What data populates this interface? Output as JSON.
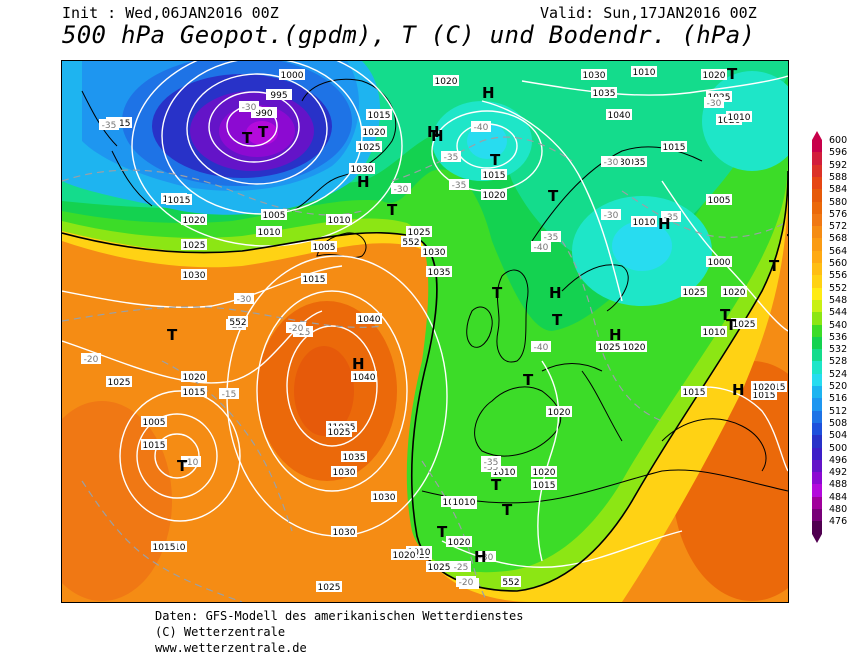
{
  "header": {
    "init": "Init : Wed,06JAN2016 00Z",
    "valid": "Valid: Sun,17JAN2016 00Z",
    "title": "500 hPa Geopot.(gpdm), T (C) und Bodendr. (hPa)"
  },
  "footer": {
    "line1": "Daten: GFS-Modell des amerikanischen Wetterdienstes",
    "line2": "(C) Wetterzentrale",
    "line3": "www.wetterzentrale.de"
  },
  "legend": {
    "levels": [
      "600",
      "596",
      "592",
      "588",
      "584",
      "580",
      "576",
      "572",
      "568",
      "564",
      "560",
      "556",
      "552",
      "548",
      "544",
      "540",
      "536",
      "532",
      "528",
      "524",
      "520",
      "516",
      "512",
      "508",
      "504",
      "500",
      "496",
      "492",
      "488",
      "484",
      "480",
      "476"
    ],
    "colors": [
      "#c8004a",
      "#d21e3c",
      "#dc3228",
      "#e64614",
      "#e65a0a",
      "#eb690a",
      "#f07814",
      "#f58c14",
      "#fa9b14",
      "#ffaa14",
      "#ffbe14",
      "#ffd214",
      "#ffeb14",
      "#c8f014",
      "#8ce614",
      "#3cdc28",
      "#14d250",
      "#14dc8c",
      "#1ee6c8",
      "#28dcf0",
      "#1eb4f0",
      "#1e96f0",
      "#1e73e6",
      "#1e50dc",
      "#2832c8",
      "#3c1ec8",
      "#6414c8",
      "#8c0ad2",
      "#b40adc",
      "#a0009b",
      "#780078",
      "#500050"
    ]
  },
  "map": {
    "pressure_labels": [
      {
        "text": "1000"
      },
      {
        "text": "995"
      },
      {
        "text": "990"
      },
      {
        "text": "1020"
      },
      {
        "text": "1015"
      },
      {
        "text": "1015"
      },
      {
        "text": "1020"
      },
      {
        "text": "1025"
      },
      {
        "text": "1030"
      },
      {
        "text": "1015"
      },
      {
        "text": "1005"
      },
      {
        "text": "1010"
      },
      {
        "text": "1015"
      },
      {
        "text": "1020"
      },
      {
        "text": "1025"
      },
      {
        "text": "1030"
      },
      {
        "text": "1010"
      },
      {
        "text": "1005"
      },
      {
        "text": "1015"
      },
      {
        "text": "1025"
      },
      {
        "text": "1030"
      },
      {
        "text": "1035"
      },
      {
        "text": "1040"
      },
      {
        "text": "1035"
      },
      {
        "text": "1030"
      },
      {
        "text": "1040"
      },
      {
        "text": "1035"
      },
      {
        "text": "1030"
      },
      {
        "text": "1025"
      },
      {
        "text": "1020"
      },
      {
        "text": "1015"
      },
      {
        "text": "1010"
      },
      {
        "text": "1005"
      },
      {
        "text": "1000"
      },
      {
        "text": "1010"
      },
      {
        "text": "1025"
      },
      {
        "text": "1020"
      },
      {
        "text": "1015"
      },
      {
        "text": "1010"
      },
      {
        "text": "1020"
      },
      {
        "text": "1015"
      },
      {
        "text": "1010"
      },
      {
        "text": "1020"
      },
      {
        "text": "1015"
      },
      {
        "text": "1020"
      },
      {
        "text": "1025"
      },
      {
        "text": "1015"
      },
      {
        "text": "1020"
      },
      {
        "text": "1025"
      },
      {
        "text": "1030"
      },
      {
        "text": "1035"
      },
      {
        "text": "1040"
      },
      {
        "text": "1015"
      },
      {
        "text": "1010"
      },
      {
        "text": "1015"
      },
      {
        "text": "1020"
      },
      {
        "text": "1025"
      },
      {
        "text": "1015"
      },
      {
        "text": "1025"
      },
      {
        "text": "1010"
      },
      {
        "text": "1015"
      },
      {
        "text": "1020"
      },
      {
        "text": "1020"
      },
      {
        "text": "1010"
      },
      {
        "text": "1025"
      },
      {
        "text": "1015"
      },
      {
        "text": "1020"
      },
      {
        "text": "1025"
      },
      {
        "text": "1030"
      },
      {
        "text": "1035"
      },
      {
        "text": "1040"
      },
      {
        "text": "1035"
      },
      {
        "text": "1030"
      },
      {
        "text": "1025"
      },
      {
        "text": "1020"
      },
      {
        "text": "1015"
      },
      {
        "text": "1010"
      },
      {
        "text": "1005"
      }
    ],
    "temp_labels": [
      {
        "text": "-35"
      },
      {
        "text": "-30"
      },
      {
        "text": "-30"
      },
      {
        "text": "-35"
      },
      {
        "text": "-40"
      },
      {
        "text": "-35"
      },
      {
        "text": "-30"
      },
      {
        "text": "-30"
      },
      {
        "text": "-25"
      },
      {
        "text": "-30"
      },
      {
        "text": "-25"
      },
      {
        "text": "-20"
      },
      {
        "text": "-20"
      },
      {
        "text": "-15"
      },
      {
        "text": "-10"
      },
      {
        "text": "-25"
      },
      {
        "text": "-40"
      },
      {
        "text": "-35"
      },
      {
        "text": "-30"
      },
      {
        "text": "-35"
      },
      {
        "text": "-40"
      },
      {
        "text": "-35"
      },
      {
        "text": "-35"
      },
      {
        "text": "-30"
      },
      {
        "text": "-25"
      },
      {
        "text": "-20"
      },
      {
        "text": "-35"
      }
    ],
    "geopot_labels": [
      {
        "text": "552"
      },
      {
        "text": "552"
      },
      {
        "text": "552"
      }
    ],
    "centers": [
      {
        "text": "T"
      },
      {
        "text": "T"
      },
      {
        "text": "H"
      },
      {
        "text": "H"
      },
      {
        "text": "T"
      },
      {
        "text": "H"
      },
      {
        "text": "T"
      },
      {
        "text": "H"
      },
      {
        "text": "T"
      },
      {
        "text": "H"
      },
      {
        "text": "T"
      },
      {
        "text": "H"
      },
      {
        "text": "T"
      },
      {
        "text": "T"
      },
      {
        "text": "T"
      },
      {
        "text": "T"
      },
      {
        "text": "H"
      },
      {
        "text": "T"
      },
      {
        "text": "H"
      },
      {
        "text": "T"
      },
      {
        "text": "H"
      },
      {
        "text": "T"
      },
      {
        "text": "T"
      },
      {
        "text": "T"
      },
      {
        "text": "T"
      },
      {
        "text": "T"
      },
      {
        "text": "H"
      },
      {
        "text": "T"
      }
    ]
  }
}
